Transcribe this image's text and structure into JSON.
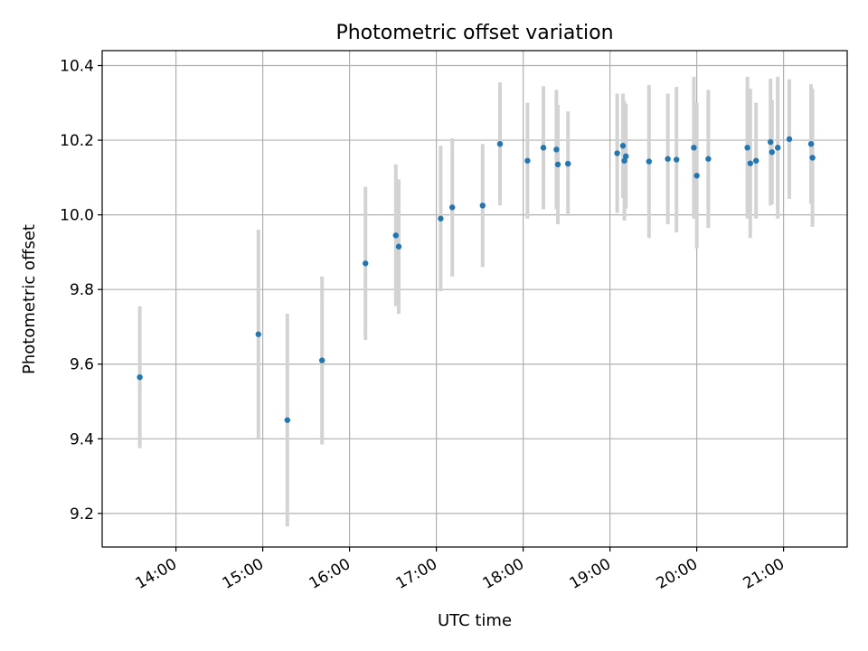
{
  "chart_data": {
    "type": "scatter",
    "title": "Photometric offset variation",
    "xlabel": "UTC time",
    "ylabel": "Photometric offset",
    "grid": true,
    "legend": "none",
    "x_axis_kind": "time",
    "xlim": [
      "13:09",
      "21:44"
    ],
    "ylim": [
      9.11,
      10.44
    ],
    "xticks": [
      "14:00",
      "15:00",
      "16:00",
      "17:00",
      "18:00",
      "19:00",
      "20:00",
      "21:00"
    ],
    "yticks": [
      9.2,
      9.4,
      9.6,
      9.8,
      10.0,
      10.2,
      10.4
    ],
    "colors": {
      "point": "#1f77b4",
      "errorbar": "#d3d3d3",
      "grid": "#b0b0b0"
    },
    "series": [
      {
        "points": [
          {
            "time": "13:35",
            "y": 9.565,
            "err": 0.19
          },
          {
            "time": "14:57",
            "y": 9.68,
            "err": 0.28
          },
          {
            "time": "15:17",
            "y": 9.45,
            "err": 0.285
          },
          {
            "time": "15:41",
            "y": 9.61,
            "err": 0.225
          },
          {
            "time": "16:11",
            "y": 9.87,
            "err": 0.205
          },
          {
            "time": "16:32",
            "y": 9.945,
            "err": 0.19
          },
          {
            "time": "16:34",
            "y": 9.915,
            "err": 0.18
          },
          {
            "time": "17:03",
            "y": 9.99,
            "err": 0.195
          },
          {
            "time": "17:11",
            "y": 10.02,
            "err": 0.185
          },
          {
            "time": "17:32",
            "y": 10.025,
            "err": 0.165
          },
          {
            "time": "17:44",
            "y": 10.19,
            "err": 0.165
          },
          {
            "time": "18:03",
            "y": 10.145,
            "err": 0.155
          },
          {
            "time": "18:14",
            "y": 10.18,
            "err": 0.165
          },
          {
            "time": "18:23",
            "y": 10.175,
            "err": 0.16
          },
          {
            "time": "18:24",
            "y": 10.135,
            "err": 0.16
          },
          {
            "time": "18:31",
            "y": 10.137,
            "err": 0.14
          },
          {
            "time": "19:05",
            "y": 10.165,
            "err": 0.16
          },
          {
            "time": "19:09",
            "y": 10.185,
            "err": 0.14
          },
          {
            "time": "19:10",
            "y": 10.145,
            "err": 0.16
          },
          {
            "time": "19:11",
            "y": 10.157,
            "err": 0.14
          },
          {
            "time": "19:27",
            "y": 10.143,
            "err": 0.205
          },
          {
            "time": "19:40",
            "y": 10.15,
            "err": 0.175
          },
          {
            "time": "19:46",
            "y": 10.148,
            "err": 0.195
          },
          {
            "time": "19:58",
            "y": 10.18,
            "err": 0.19
          },
          {
            "time": "20:00",
            "y": 10.105,
            "err": 0.195
          },
          {
            "time": "20:08",
            "y": 10.15,
            "err": 0.185
          },
          {
            "time": "20:35",
            "y": 10.18,
            "err": 0.19
          },
          {
            "time": "20:37",
            "y": 10.138,
            "err": 0.2
          },
          {
            "time": "20:41",
            "y": 10.145,
            "err": 0.155
          },
          {
            "time": "20:51",
            "y": 10.195,
            "err": 0.17
          },
          {
            "time": "20:52",
            "y": 10.168,
            "err": 0.14
          },
          {
            "time": "20:56",
            "y": 10.18,
            "err": 0.19
          },
          {
            "time": "21:04",
            "y": 10.203,
            "err": 0.16
          },
          {
            "time": "21:19",
            "y": 10.19,
            "err": 0.16
          },
          {
            "time": "21:20",
            "y": 10.153,
            "err": 0.185
          }
        ]
      }
    ]
  }
}
